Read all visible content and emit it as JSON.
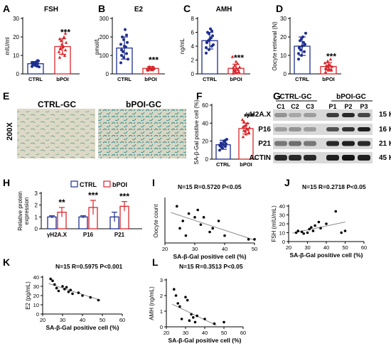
{
  "colors": {
    "ctrl": "#1f2f8f",
    "bpoi": "#d8262b",
    "wb_band": "#151515",
    "wb_bg": "#d9d9d9",
    "trend": "#8c8c8c"
  },
  "labels": {
    "A": "A",
    "B": "B",
    "C": "C",
    "D": "D",
    "E": "E",
    "F": "F",
    "G": "G",
    "H": "H",
    "I": "I",
    "J": "J",
    "K": "K",
    "L": "L"
  },
  "panel_e": {
    "ctrl_title": "CTRL-GC",
    "bpoi_title": "bPOI-GC",
    "magnification": "200X"
  },
  "panel_g": {
    "group1": "CTRL-GC",
    "group2": "bPOI-GC",
    "lanes": [
      "C1",
      "C2",
      "C3",
      "P1",
      "P2",
      "P3"
    ],
    "proteins": [
      "γH2A.X",
      "P16",
      "P21",
      "ACTIN"
    ],
    "sizes": [
      "15 KDa",
      "16 KDa",
      "21 KDa",
      "45 KDa"
    ]
  },
  "chart_data": [
    {
      "id": "A",
      "type": "bar",
      "title": "FSH",
      "ylabel": "mIU/ml",
      "categories": [
        "CTRL",
        "bPOI"
      ],
      "ylim": [
        0,
        30
      ],
      "yticks": [
        0,
        10,
        20,
        30
      ],
      "values": [
        5.5,
        14.8
      ],
      "errors": [
        1.2,
        4.2
      ],
      "significance": "***",
      "points": [
        [
          4,
          5,
          5.5,
          6,
          4.5,
          7,
          5,
          6.5,
          3.8,
          5.8,
          4.2,
          6.2,
          5.2,
          7.2,
          4.8
        ],
        [
          9,
          11,
          13,
          14,
          15,
          17,
          18,
          20,
          12,
          16,
          10,
          19,
          14.5,
          22,
          13.5
        ]
      ]
    },
    {
      "id": "B",
      "type": "bar",
      "title": "E2",
      "ylabel": "pmol/L",
      "categories": [
        "CTRL",
        "bPOI"
      ],
      "ylim": [
        0,
        300
      ],
      "yticks": [
        0,
        100,
        200,
        300
      ],
      "values": [
        140,
        30
      ],
      "errors": [
        60,
        10
      ],
      "significance": "***",
      "points": [
        [
          60,
          90,
          110,
          130,
          150,
          170,
          200,
          240,
          80,
          120,
          145,
          160,
          185,
          210,
          100
        ],
        [
          20,
          25,
          30,
          35,
          28,
          32,
          40,
          22,
          27,
          33,
          38,
          24,
          30,
          29,
          31
        ]
      ]
    },
    {
      "id": "C",
      "type": "bar",
      "title": "AMH",
      "ylabel": "ng/mL",
      "categories": [
        "CTRL",
        "bPOI"
      ],
      "ylim": [
        0,
        8
      ],
      "yticks": [
        0,
        2,
        4,
        6,
        8
      ],
      "values": [
        4.8,
        0.8
      ],
      "errors": [
        1.2,
        0.6
      ],
      "significance": "***",
      "points": [
        [
          3,
          3.5,
          4,
          4.5,
          5,
          5.5,
          6,
          6.5,
          4.2,
          4.8,
          5.2,
          3.8,
          5.8,
          6.2,
          4.6
        ],
        [
          0.1,
          0.2,
          0.3,
          0.5,
          0.8,
          1.0,
          1.2,
          1.5,
          2.5,
          0.4,
          0.6,
          0.9,
          1.8,
          0.3,
          0.7
        ]
      ]
    },
    {
      "id": "D",
      "type": "bar",
      "title": "",
      "ylabel": "Oocyte retrieval (N)",
      "categories": [
        "CTRL",
        "bPOI"
      ],
      "ylim": [
        0,
        30
      ],
      "yticks": [
        0,
        10,
        20,
        30
      ],
      "values": [
        15,
        4
      ],
      "errors": [
        5,
        2
      ],
      "significance": "***",
      "points": [
        [
          8,
          10,
          12,
          14,
          15,
          16,
          18,
          20,
          22,
          13,
          17,
          11,
          19,
          15.5,
          14.5
        ],
        [
          1,
          2,
          2,
          3,
          3,
          4,
          4,
          5,
          6,
          7,
          8,
          3,
          5,
          2.5,
          4.5
        ]
      ]
    },
    {
      "id": "F",
      "type": "bar",
      "title": "",
      "ylabel": "SA-β-Gal positive cell (%)",
      "categories": [
        "CTRL",
        "bPOI"
      ],
      "ylim": [
        0,
        60
      ],
      "yticks": [
        0,
        20,
        40,
        60
      ],
      "values": [
        16,
        34
      ],
      "errors": [
        5,
        6
      ],
      "significance": "***",
      "points": [
        [
          10,
          12,
          14,
          15,
          16,
          17,
          18,
          20,
          22,
          13,
          19,
          15.5,
          16.5,
          21,
          14.5
        ],
        [
          25,
          28,
          30,
          32,
          34,
          35,
          37,
          40,
          44,
          31,
          33,
          36,
          38,
          29,
          42
        ]
      ]
    },
    {
      "id": "H",
      "type": "bar",
      "title": "",
      "ylabel": "Relative protein expression",
      "categories": [
        "γH2A.X",
        "P16",
        "P21"
      ],
      "ylim": [
        0,
        3
      ],
      "yticks": [
        0,
        1,
        2,
        3
      ],
      "legend_position": "top",
      "series": [
        {
          "name": "CTRL",
          "values": [
            1.0,
            1.0,
            1.0
          ],
          "errors": [
            0.1,
            0.1,
            0.4
          ]
        },
        {
          "name": "bPOI",
          "values": [
            1.4,
            1.8,
            1.9
          ],
          "errors": [
            0.4,
            0.6,
            0.4
          ]
        }
      ],
      "significance": [
        "**",
        "***",
        "***"
      ]
    },
    {
      "id": "I",
      "type": "scatter",
      "stats": "N=15  R=0.5720  P<0.05",
      "xlabel": "SA-β-Gal positive cell (%)",
      "ylabel": "Oocyte count",
      "xlim": [
        20,
        50
      ],
      "xticks": [
        20,
        30,
        40,
        50
      ],
      "ylim": [
        0,
        12
      ],
      "yticks": [],
      "x": [
        24,
        25,
        26,
        27,
        28,
        30,
        31,
        32,
        33,
        35,
        36,
        38,
        40,
        48,
        50
      ],
      "y": [
        10,
        4,
        6,
        2,
        8,
        7,
        9,
        5,
        7,
        3,
        4,
        6,
        2,
        1,
        1
      ],
      "trend": [
        [
          22,
          8.3
        ],
        [
          50,
          0.8
        ]
      ]
    },
    {
      "id": "J",
      "type": "scatter",
      "stats": "N=15  R=0.2718  P<0.05",
      "xlabel": "SA-β-Gal positive cell (%)",
      "ylabel": "FSH (mIU/mL)",
      "xlim": [
        20,
        60
      ],
      "xticks": [
        20,
        30,
        40,
        50,
        60
      ],
      "ylim": [
        0,
        40
      ],
      "yticks": [
        0,
        10,
        20,
        30,
        40
      ],
      "x": [
        24,
        25,
        27,
        28,
        30,
        31,
        32,
        33,
        34,
        36,
        37,
        40,
        45,
        48,
        50
      ],
      "y": [
        10,
        12,
        11,
        9,
        10,
        14,
        16,
        12,
        18,
        22,
        15,
        20,
        34,
        10,
        12
      ],
      "trend": [
        [
          22,
          9.5
        ],
        [
          50,
          22
        ]
      ]
    },
    {
      "id": "K",
      "type": "scatter",
      "stats": "N=15  R=0.5975  P<0.001",
      "xlabel": "SA-β-Gal positive cell (%)",
      "ylabel": "E2 (pg/mL)",
      "xlim": [
        20,
        60
      ],
      "xticks": [
        20,
        30,
        40,
        50,
        60
      ],
      "ylim": [
        0,
        40
      ],
      "yticks": [
        0,
        10,
        20,
        30,
        40
      ],
      "x": [
        24,
        25,
        26,
        27,
        28,
        30,
        31,
        32,
        33,
        34,
        35,
        38,
        40,
        44,
        48
      ],
      "y": [
        38,
        36,
        32,
        28,
        25,
        30,
        27,
        29,
        24,
        26,
        22,
        23,
        20,
        18,
        15
      ],
      "trend": [
        [
          23,
          33
        ],
        [
          49,
          15
        ]
      ]
    },
    {
      "id": "L",
      "type": "scatter",
      "stats": "N=15  R=0.3513  P<0.05",
      "xlabel": "SA-β-Gal positive cell (%)",
      "ylabel": "AMH (ng/mL)",
      "xlim": [
        20,
        60
      ],
      "xticks": [
        20,
        30,
        40,
        50,
        60
      ],
      "ylim": [
        0,
        3
      ],
      "yticks": [
        0,
        1,
        2,
        3
      ],
      "x": [
        24,
        25,
        26,
        27,
        28,
        30,
        31,
        32,
        33,
        34,
        35,
        36,
        40,
        45,
        50
      ],
      "y": [
        2.4,
        2.0,
        1.5,
        1.3,
        0.5,
        1.9,
        1.7,
        0.4,
        0.8,
        0.6,
        0.3,
        0.7,
        0.5,
        0.2,
        0.3
      ],
      "trend": [
        [
          23,
          1.45
        ],
        [
          46,
          0.1
        ]
      ]
    }
  ]
}
